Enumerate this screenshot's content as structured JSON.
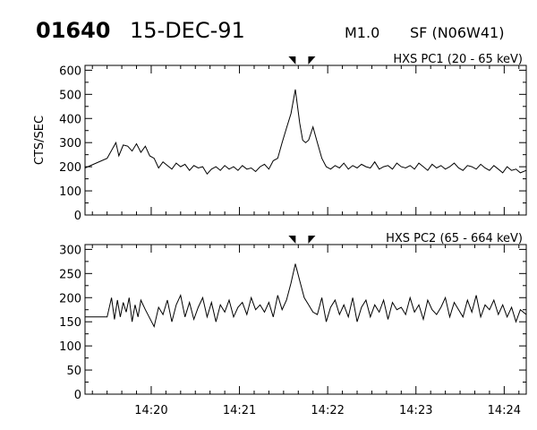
{
  "header": {
    "event_id": "01640",
    "date": "15-DEC-91",
    "flare_class": "M1.0",
    "region": "SF (N06W41)"
  },
  "chart_data": [
    {
      "type": "line",
      "title": "HXS PC1 (20 - 65 keV)",
      "xlabel": "",
      "ylabel": "CTS/SEC",
      "xlim": [
        "14:19:15",
        "14:24:15"
      ],
      "ylim": [
        0,
        620
      ],
      "y_ticks": [
        0,
        100,
        200,
        300,
        400,
        500,
        600
      ],
      "x_ticks": [
        "14:20",
        "14:21",
        "14:22",
        "14:23",
        "14:24"
      ],
      "x_tick_labels_shown": false,
      "markers_at": [
        "14:21:37",
        "14:21:48"
      ],
      "grid": false,
      "series": [
        {
          "x": [
            "14:19:15",
            "14:19:30",
            "14:19:36",
            "14:19:38",
            "14:19:41",
            "14:19:44",
            "14:19:47",
            "14:19:50",
            "14:19:53",
            "14:19:56",
            "14:19:59",
            "14:20:02",
            "14:20:05",
            "14:20:08",
            "14:20:11",
            "14:20:14",
            "14:20:17",
            "14:20:20",
            "14:20:23",
            "14:20:26",
            "14:20:29",
            "14:20:32",
            "14:20:35",
            "14:20:38",
            "14:20:41",
            "14:20:44",
            "14:20:47",
            "14:20:50",
            "14:20:53",
            "14:20:56",
            "14:20:59",
            "14:21:02",
            "14:21:05",
            "14:21:08",
            "14:21:11",
            "14:21:14",
            "14:21:17",
            "14:21:20",
            "14:21:23",
            "14:21:26",
            "14:21:29",
            "14:21:32",
            "14:21:35",
            "14:21:38",
            "14:21:41",
            "14:21:43",
            "14:21:45",
            "14:21:47",
            "14:21:50",
            "14:21:53",
            "14:21:56",
            "14:21:59",
            "14:22:02",
            "14:22:05",
            "14:22:08",
            "14:22:11",
            "14:22:14",
            "14:22:17",
            "14:22:20",
            "14:22:23",
            "14:22:26",
            "14:22:29",
            "14:22:32",
            "14:22:35",
            "14:22:38",
            "14:22:41",
            "14:22:44",
            "14:22:47",
            "14:22:50",
            "14:22:53",
            "14:22:56",
            "14:22:59",
            "14:23:02",
            "14:23:05",
            "14:23:08",
            "14:23:11",
            "14:23:14",
            "14:23:17",
            "14:23:20",
            "14:23:23",
            "14:23:26",
            "14:23:29",
            "14:23:32",
            "14:23:35",
            "14:23:38",
            "14:23:41",
            "14:23:44",
            "14:23:47",
            "14:23:50",
            "14:23:53",
            "14:23:56",
            "14:23:59",
            "14:24:02",
            "14:24:05",
            "14:24:08",
            "14:24:11",
            "14:24:15"
          ],
          "y": [
            195,
            235,
            300,
            245,
            290,
            285,
            265,
            295,
            260,
            285,
            245,
            235,
            195,
            220,
            205,
            190,
            215,
            200,
            210,
            185,
            205,
            195,
            200,
            170,
            190,
            200,
            185,
            205,
            190,
            200,
            185,
            205,
            190,
            195,
            180,
            200,
            210,
            190,
            225,
            235,
            300,
            360,
            420,
            520,
            380,
            310,
            300,
            310,
            365,
            300,
            235,
            200,
            190,
            205,
            195,
            215,
            190,
            205,
            195,
            210,
            200,
            195,
            220,
            190,
            200,
            205,
            190,
            215,
            200,
            195,
            205,
            190,
            215,
            200,
            185,
            210,
            195,
            205,
            190,
            200,
            215,
            195,
            185,
            205,
            200,
            190,
            210,
            195,
            185,
            205,
            190,
            175,
            200,
            185,
            190,
            175,
            185
          ],
          "color": "#000000"
        }
      ]
    },
    {
      "type": "line",
      "title": "HXS PC2 (65 - 664 keV)",
      "xlabel": "",
      "ylabel": "",
      "xlim": [
        "14:19:15",
        "14:24:15"
      ],
      "ylim": [
        0,
        310
      ],
      "y_ticks": [
        0,
        50,
        100,
        150,
        200,
        250,
        300
      ],
      "x_ticks": [
        "14:20",
        "14:21",
        "14:22",
        "14:23",
        "14:24"
      ],
      "x_tick_labels_shown": true,
      "markers_at": [
        "14:21:37",
        "14:21:48"
      ],
      "grid": false,
      "series": [
        {
          "x": [
            "14:19:15",
            "14:19:30",
            "14:19:33",
            "14:19:35",
            "14:19:37",
            "14:19:39",
            "14:19:41",
            "14:19:43",
            "14:19:45",
            "14:19:47",
            "14:19:49",
            "14:19:51",
            "14:19:53",
            "14:19:56",
            "14:20:02",
            "14:20:05",
            "14:20:08",
            "14:20:11",
            "14:20:14",
            "14:20:17",
            "14:20:20",
            "14:20:23",
            "14:20:26",
            "14:20:29",
            "14:20:32",
            "14:20:35",
            "14:20:38",
            "14:20:41",
            "14:20:44",
            "14:20:47",
            "14:20:50",
            "14:20:53",
            "14:20:56",
            "14:20:59",
            "14:21:02",
            "14:21:05",
            "14:21:08",
            "14:21:11",
            "14:21:14",
            "14:21:17",
            "14:21:20",
            "14:21:23",
            "14:21:26",
            "14:21:29",
            "14:21:32",
            "14:21:35",
            "14:21:38",
            "14:21:41",
            "14:21:44",
            "14:21:47",
            "14:21:50",
            "14:21:53",
            "14:21:56",
            "14:21:59",
            "14:22:02",
            "14:22:05",
            "14:22:08",
            "14:22:11",
            "14:22:14",
            "14:22:17",
            "14:22:20",
            "14:22:23",
            "14:22:26",
            "14:22:29",
            "14:22:32",
            "14:22:35",
            "14:22:38",
            "14:22:41",
            "14:22:44",
            "14:22:47",
            "14:22:50",
            "14:22:53",
            "14:22:56",
            "14:22:59",
            "14:23:02",
            "14:23:05",
            "14:23:08",
            "14:23:11",
            "14:23:14",
            "14:23:17",
            "14:23:20",
            "14:23:23",
            "14:23:26",
            "14:23:29",
            "14:23:32",
            "14:23:35",
            "14:23:38",
            "14:23:41",
            "14:23:44",
            "14:23:47",
            "14:23:50",
            "14:23:53",
            "14:23:56",
            "14:23:59",
            "14:24:02",
            "14:24:05",
            "14:24:08",
            "14:24:11",
            "14:24:15"
          ],
          "y": [
            160,
            160,
            200,
            155,
            195,
            160,
            190,
            170,
            200,
            150,
            185,
            160,
            195,
            175,
            140,
            180,
            165,
            195,
            150,
            185,
            205,
            160,
            190,
            155,
            180,
            200,
            160,
            190,
            150,
            185,
            170,
            195,
            160,
            180,
            190,
            165,
            200,
            175,
            185,
            170,
            190,
            160,
            205,
            175,
            195,
            230,
            270,
            235,
            200,
            185,
            170,
            165,
            200,
            150,
            180,
            195,
            165,
            185,
            160,
            200,
            150,
            180,
            195,
            160,
            185,
            170,
            195,
            155,
            190,
            175,
            180,
            165,
            200,
            170,
            185,
            155,
            195,
            175,
            165,
            180,
            200,
            160,
            190,
            175,
            160,
            195,
            170,
            205,
            160,
            185,
            175,
            195,
            165,
            185,
            160,
            180,
            150,
            175,
            165
          ]
        }
      ]
    }
  ]
}
